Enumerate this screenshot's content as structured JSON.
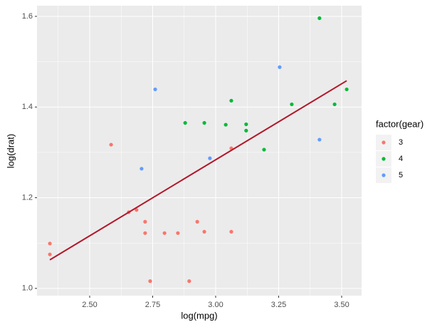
{
  "chart_data": {
    "type": "scatter",
    "x_label": "log(mpg)",
    "y_label": "log(drat)",
    "xlim": [
      2.291,
      3.579
    ],
    "ylim": [
      0.984,
      1.6235
    ],
    "xticks": [
      {
        "value": 2.5,
        "label": "2.50"
      },
      {
        "value": 2.75,
        "label": "2.75"
      },
      {
        "value": 3,
        "label": "3.00"
      },
      {
        "value": 3.25,
        "label": "3.25"
      },
      {
        "value": 3.5,
        "label": "3.50"
      }
    ],
    "yticks": [
      {
        "value": 1,
        "label": "1.0"
      },
      1.2,
      1.4,
      1.6
    ],
    "grid": true,
    "legend_title": "factor(gear)",
    "legend_position": "right",
    "series": [
      {
        "name": "3",
        "color": "#F8766D",
        "x": [
          2.342,
          2.342,
          2.585,
          2.655,
          2.686,
          2.72,
          2.72,
          2.74,
          2.797,
          2.85,
          2.895,
          2.927,
          2.955,
          3.062,
          3.062
        ],
        "values": [
          1.099,
          1.075,
          1.317,
          1.168,
          1.173,
          1.147,
          1.122,
          1.016,
          1.122,
          1.122,
          1.016,
          1.147,
          1.125,
          1.125,
          1.309
        ]
      },
      {
        "name": "4",
        "color": "#00BA38",
        "x": [
          3.412,
          2.879,
          2.955,
          3.062,
          3.121,
          3.121,
          3.04,
          3.192,
          3.302,
          3.472,
          3.52
        ],
        "values": [
          1.596,
          1.365,
          1.365,
          1.414,
          1.362,
          1.348,
          1.361,
          1.306,
          1.406,
          1.406,
          1.439
        ]
      },
      {
        "name": "5",
        "color": "#619CFF",
        "x": [
          2.76,
          2.706,
          2.977,
          3.254,
          3.412
        ],
        "values": [
          1.439,
          1.264,
          1.287,
          1.488,
          1.328
        ]
      }
    ],
    "fit_line": {
      "x": [
        2.342,
        3.52
      ],
      "values": [
        1.063,
        1.458
      ],
      "color": "#B2182B"
    }
  }
}
